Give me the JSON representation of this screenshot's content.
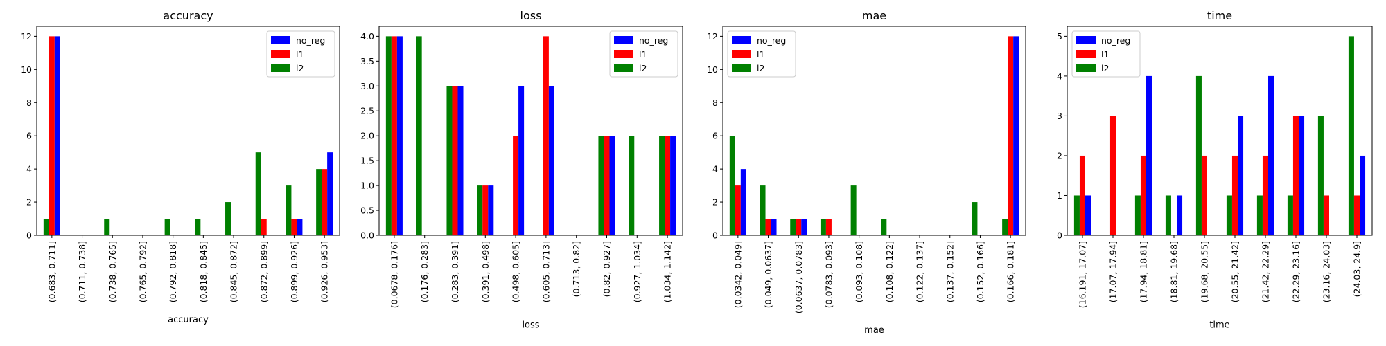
{
  "colors": {
    "no_reg": "#0000ff",
    "l1": "#ff0000",
    "l2": "#008000"
  },
  "chart_data": [
    {
      "type": "bar",
      "title": "accuracy",
      "xlabel": "accuracy",
      "ylabel": "",
      "ylim": [
        0,
        12.6
      ],
      "yticks": [
        0,
        2,
        4,
        6,
        8,
        10,
        12
      ],
      "legend": "top-right",
      "clip_last": true,
      "categories": [
        "(0.683, 0.711]",
        "(0.711, 0.738]",
        "(0.738, 0.765]",
        "(0.765, 0.792]",
        "(0.792, 0.818]",
        "(0.818, 0.845]",
        "(0.845, 0.872]",
        "(0.872, 0.899]",
        "(0.899, 0.926]",
        "(0.926, 0.953]"
      ],
      "series": [
        {
          "name": "no_reg",
          "values": [
            12,
            0,
            0,
            0,
            0,
            0,
            0,
            0,
            1,
            5
          ]
        },
        {
          "name": "l1",
          "values": [
            12,
            0,
            0,
            0,
            0,
            0,
            0,
            1,
            1,
            4
          ]
        },
        {
          "name": "l2",
          "values": [
            1,
            0,
            1,
            0,
            1,
            1,
            2,
            5,
            3,
            4
          ]
        }
      ]
    },
    {
      "type": "bar",
      "title": "loss",
      "xlabel": "loss",
      "ylabel": "",
      "ylim": [
        0,
        4.2
      ],
      "yticks": [
        "0.0",
        "0.5",
        "1.0",
        "1.5",
        "2.0",
        "2.5",
        "3.0",
        "3.5",
        "4.0"
      ],
      "legend": "top-right",
      "clip_last": true,
      "categories": [
        "(0.0678, 0.176]",
        "(0.176, 0.283]",
        "(0.283, 0.391]",
        "(0.391, 0.498]",
        "(0.498, 0.605]",
        "(0.605, 0.713]",
        "(0.713, 0.82]",
        "(0.82, 0.927]",
        "(0.927, 1.034]",
        "(1.034, 1.142]"
      ],
      "series": [
        {
          "name": "no_reg",
          "values": [
            4,
            0,
            3,
            1,
            3,
            3,
            0,
            2,
            0,
            2
          ]
        },
        {
          "name": "l1",
          "values": [
            4,
            0,
            3,
            1,
            2,
            4,
            0,
            2,
            0,
            2
          ]
        },
        {
          "name": "l2",
          "values": [
            4,
            4,
            3,
            1,
            0,
            0,
            0,
            2,
            2,
            2
          ]
        }
      ]
    },
    {
      "type": "bar",
      "title": "mae",
      "xlabel": "mae",
      "ylabel": "",
      "ylim": [
        0,
        12.6
      ],
      "yticks": [
        0,
        2,
        4,
        6,
        8,
        10,
        12
      ],
      "legend": "top-left",
      "clip_last": true,
      "categories": [
        "(0.0342, 0.049]",
        "(0.049, 0.0637]",
        "(0.0637, 0.0783]",
        "(0.0783, 0.093]",
        "(0.093, 0.108]",
        "(0.108, 0.122]",
        "(0.122, 0.137]",
        "(0.137, 0.152]",
        "(0.152, 0.166]",
        "(0.166, 0.181]"
      ],
      "series": [
        {
          "name": "no_reg",
          "values": [
            4,
            1,
            1,
            0,
            0,
            0,
            0,
            0,
            0,
            12
          ]
        },
        {
          "name": "l1",
          "values": [
            3,
            1,
            1,
            1,
            0,
            0,
            0,
            0,
            0,
            12
          ]
        },
        {
          "name": "l2",
          "values": [
            6,
            3,
            1,
            1,
            3,
            1,
            0,
            0,
            2,
            1
          ]
        }
      ]
    },
    {
      "type": "bar",
      "title": "time",
      "xlabel": "time",
      "ylabel": "",
      "ylim": [
        0,
        5.25
      ],
      "yticks": [
        0,
        1,
        2,
        3,
        4,
        5
      ],
      "legend": "top-left",
      "clip_last": true,
      "categories": [
        "(16.191, 17.07]",
        "(17.07, 17.94]",
        "(17.94, 18.81]",
        "(18.81, 19.68]",
        "(19.68, 20.55]",
        "(20.55, 21.42]",
        "(21.42, 22.29]",
        "(22.29, 23.16]",
        "(23.16, 24.03]",
        "(24.03, 24.9]"
      ],
      "series": [
        {
          "name": "no_reg",
          "values": [
            1,
            0,
            4,
            1,
            0,
            3,
            4,
            3,
            0,
            2
          ]
        },
        {
          "name": "l1",
          "values": [
            2,
            3,
            2,
            0,
            2,
            2,
            2,
            3,
            1,
            1
          ]
        },
        {
          "name": "l2",
          "values": [
            1,
            0,
            1,
            1,
            4,
            1,
            1,
            1,
            3,
            5
          ]
        }
      ]
    }
  ]
}
